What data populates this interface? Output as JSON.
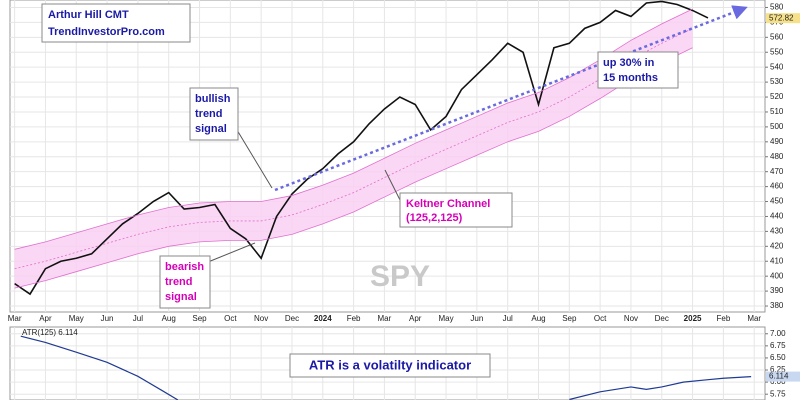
{
  "chart_data": {
    "type": "line",
    "ticker": "SPY",
    "xlim": [
      -0.15,
      24.35
    ],
    "xticks": [
      {
        "value": 0,
        "label": "Mar"
      },
      {
        "value": 1,
        "label": "Apr"
      },
      {
        "value": 2,
        "label": "May"
      },
      {
        "value": 3,
        "label": "Jun"
      },
      {
        "value": 4,
        "label": "Jul"
      },
      {
        "value": 5,
        "label": "Aug"
      },
      {
        "value": 6,
        "label": "Sep"
      },
      {
        "value": 7,
        "label": "Oct"
      },
      {
        "value": 8,
        "label": "Nov"
      },
      {
        "value": 9,
        "label": "Dec"
      },
      {
        "value": 10,
        "label": "2024"
      },
      {
        "value": 11,
        "label": "Feb"
      },
      {
        "value": 12,
        "label": "Mar"
      },
      {
        "value": 13,
        "label": "Apr"
      },
      {
        "value": 14,
        "label": "May"
      },
      {
        "value": 15,
        "label": "Jun"
      },
      {
        "value": 16,
        "label": "Jul"
      },
      {
        "value": 17,
        "label": "Aug"
      },
      {
        "value": 18,
        "label": "Sep"
      },
      {
        "value": 19,
        "label": "Oct"
      },
      {
        "value": 20,
        "label": "Nov"
      },
      {
        "value": 21,
        "label": "Dec"
      },
      {
        "value": 22,
        "label": "2025"
      },
      {
        "value": 23,
        "label": "Feb"
      },
      {
        "value": 24,
        "label": "Mar"
      }
    ],
    "ylim": [
      376,
      585
    ],
    "yticks": [
      380,
      390,
      400,
      410,
      420,
      430,
      440,
      450,
      460,
      470,
      480,
      490,
      500,
      510,
      520,
      530,
      540,
      550,
      560,
      570,
      580
    ],
    "grid": true,
    "last_price": 572.82,
    "series": [
      {
        "name": "SPY",
        "color": "#111111",
        "x": [
          0,
          0.5,
          1,
          1.5,
          2,
          2.5,
          3,
          3.5,
          4,
          4.5,
          5,
          5.5,
          6,
          6.5,
          7,
          7.5,
          8,
          8.5,
          9,
          9.5,
          10,
          10.5,
          11,
          11.5,
          12,
          12.5,
          13,
          13.5,
          14,
          14.5,
          15,
          15.5,
          16,
          16.5,
          17,
          17.5,
          18,
          18.5,
          19,
          19.5,
          20,
          20.5,
          21,
          21.5,
          22,
          22.5
        ],
        "values": [
          395,
          388,
          405,
          410,
          412,
          415,
          425,
          435,
          442,
          450,
          456,
          445,
          446,
          448,
          432,
          425,
          412,
          440,
          455,
          465,
          472,
          482,
          490,
          502,
          512,
          520,
          515,
          498,
          507,
          525,
          535,
          545,
          556,
          550,
          515,
          553,
          556,
          566,
          570,
          578,
          574,
          583,
          584,
          582,
          578,
          573
        ]
      },
      {
        "name": "Keltner Upper",
        "color": "#e070d0",
        "x": [
          0,
          1,
          2,
          3,
          4,
          5,
          6,
          7,
          8,
          9,
          10,
          11,
          12,
          13,
          14,
          15,
          16,
          17,
          18,
          19,
          20,
          21,
          22
        ],
        "values": [
          418,
          423,
          429,
          435,
          441,
          446,
          449,
          450,
          450,
          454,
          461,
          469,
          479,
          489,
          498,
          507,
          516,
          523,
          533,
          545,
          558,
          569,
          579
        ]
      },
      {
        "name": "Keltner Lower",
        "color": "#e070d0",
        "x": [
          0,
          1,
          2,
          3,
          4,
          5,
          6,
          7,
          8,
          9,
          10,
          11,
          12,
          13,
          14,
          15,
          16,
          17,
          18,
          19,
          20,
          21,
          22
        ],
        "values": [
          392,
          397,
          403,
          409,
          415,
          420,
          423,
          424,
          424,
          428,
          435,
          443,
          453,
          463,
          472,
          481,
          490,
          497,
          507,
          519,
          532,
          543,
          553
        ]
      }
    ],
    "annotations": {
      "author": [
        "Arthur Hill CMT",
        "TrendInvestorPro.com"
      ],
      "bullish": [
        "bullish",
        "trend",
        "signal"
      ],
      "bearish": [
        "bearish",
        "trend",
        "signal"
      ],
      "keltner": [
        "Keltner Channel",
        "(125,2,125)"
      ],
      "gain": [
        "up 30% in",
        "15 months"
      ]
    },
    "indicator": {
      "title": "ATR(125) 6.114",
      "note": "ATR is a volatilty indicator",
      "last_value": 6.114,
      "color": "#1f3a93",
      "ylim": [
        5.63,
        7.14
      ],
      "yticks": [
        {
          "value": 5.75,
          "label": "5.75"
        },
        {
          "value": 6,
          "label": "6.00"
        },
        {
          "value": 6.25,
          "label": "6.25"
        },
        {
          "value": 6.5,
          "label": "6.50"
        },
        {
          "value": 6.75,
          "label": "6.75"
        },
        {
          "value": 7,
          "label": "7.00"
        }
      ],
      "x": [
        0.2,
        1,
        2,
        3,
        4,
        4.8,
        5.3,
        12,
        18,
        19,
        20,
        20.5,
        21,
        21.7,
        22.5,
        23,
        23.9
      ],
      "values": [
        6.95,
        6.82,
        6.62,
        6.41,
        6.12,
        5.82,
        5.63,
        null,
        5.64,
        5.8,
        5.9,
        5.85,
        5.9,
        6.0,
        6.05,
        6.08,
        6.114
      ]
    }
  }
}
